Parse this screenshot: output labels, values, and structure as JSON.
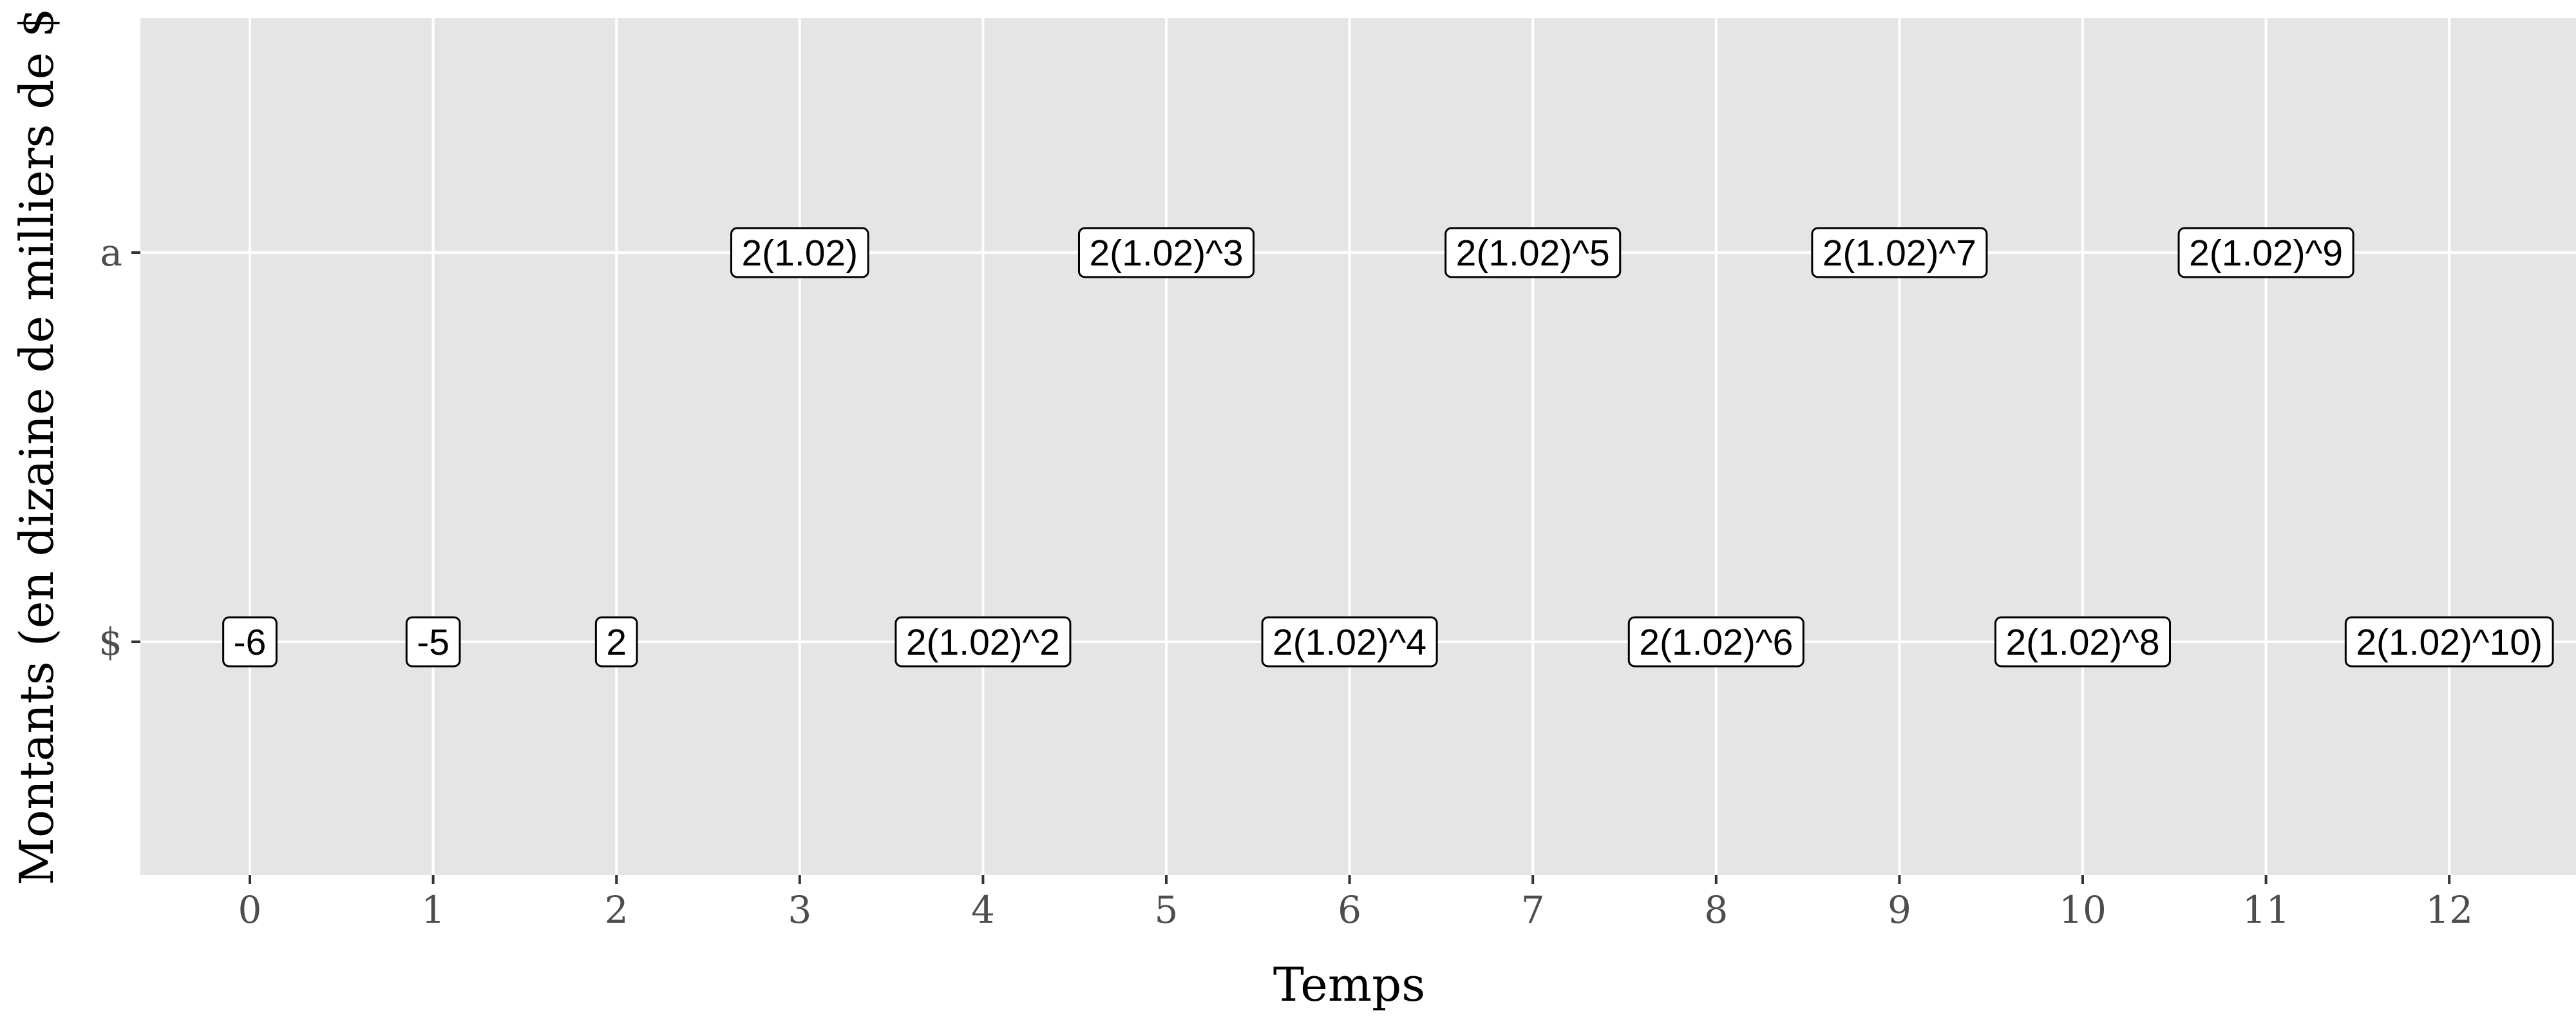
{
  "chart_data": {
    "type": "scatter",
    "title": "",
    "xlabel": "Temps",
    "ylabel": "Montants (en dizaine de milliers de $",
    "xlim": [
      -0.6,
      12.6
    ],
    "x_ticks": [
      0,
      1,
      2,
      3,
      4,
      5,
      6,
      7,
      8,
      9,
      10,
      11,
      12
    ],
    "y_categories": [
      "$",
      "a"
    ],
    "grid": true,
    "colors": {
      "panel": "#e5e5e5",
      "grid": "#ffffff",
      "label_fill": "#ffffff",
      "label_border": "#000000"
    },
    "points": [
      {
        "x": 0,
        "y": "$",
        "label": "-6"
      },
      {
        "x": 1,
        "y": "$",
        "label": "-5"
      },
      {
        "x": 2,
        "y": "$",
        "label": "2"
      },
      {
        "x": 3,
        "y": "a",
        "label": "2(1.02)"
      },
      {
        "x": 4,
        "y": "$",
        "label": "2(1.02)^2"
      },
      {
        "x": 5,
        "y": "a",
        "label": "2(1.02)^3"
      },
      {
        "x": 6,
        "y": "$",
        "label": "2(1.02)^4"
      },
      {
        "x": 7,
        "y": "a",
        "label": "2(1.02)^5"
      },
      {
        "x": 8,
        "y": "$",
        "label": "2(1.02)^6"
      },
      {
        "x": 9,
        "y": "a",
        "label": "2(1.02)^7"
      },
      {
        "x": 10,
        "y": "$",
        "label": "2(1.02)^8"
      },
      {
        "x": 11,
        "y": "a",
        "label": "2(1.02)^9"
      },
      {
        "x": 12,
        "y": "$",
        "label": "2(1.02)^10)"
      }
    ]
  }
}
